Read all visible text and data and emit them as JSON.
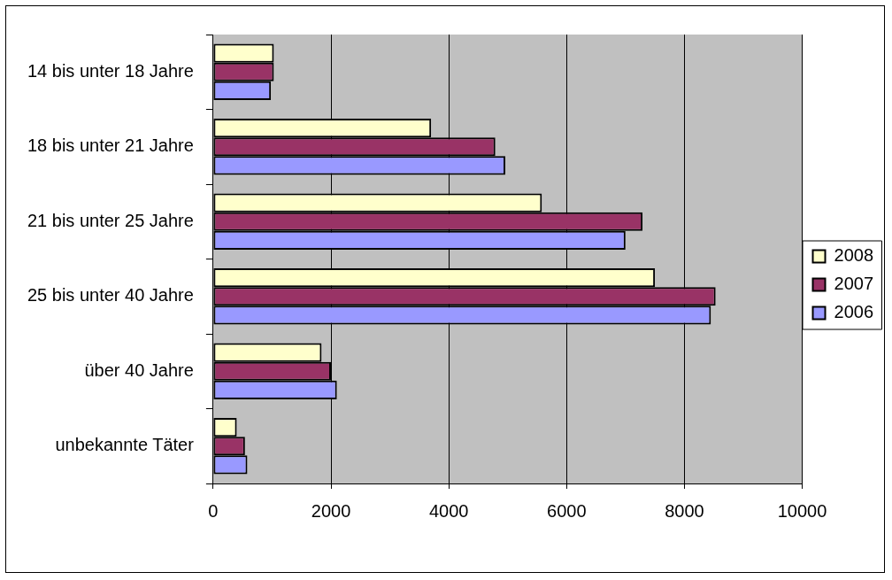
{
  "chart_data": {
    "type": "bar",
    "orientation": "horizontal",
    "categories": [
      "14 bis unter 18 Jahre",
      "18 bis unter 21 Jahre",
      "21 bis unter 25 Jahre",
      "25 bis unter 40 Jahre",
      "über 40 Jahre",
      "unbekannte Täter"
    ],
    "series": [
      {
        "name": "2008",
        "color": "#ffffcc",
        "values": [
          1030,
          3700,
          5580,
          7500,
          1840,
          400
        ]
      },
      {
        "name": "2007",
        "color": "#993366",
        "values": [
          1030,
          4790,
          7290,
          8530,
          2000,
          540
        ]
      },
      {
        "name": "2006",
        "color": "#9999ff",
        "values": [
          980,
          4960,
          7000,
          8450,
          2100,
          580
        ]
      }
    ],
    "xlim": [
      0,
      10000
    ],
    "xticks": [
      0,
      2000,
      4000,
      6000,
      8000,
      10000
    ],
    "grid": "x",
    "legend": "right"
  }
}
